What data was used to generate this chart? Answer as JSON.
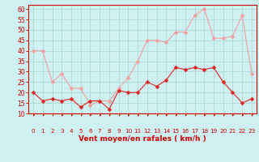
{
  "x": [
    0,
    1,
    2,
    3,
    4,
    5,
    6,
    7,
    8,
    9,
    10,
    11,
    12,
    13,
    14,
    15,
    16,
    17,
    18,
    19,
    20,
    21,
    22,
    23
  ],
  "wind_avg": [
    20,
    16,
    17,
    16,
    17,
    13,
    16,
    16,
    12,
    21,
    20,
    20,
    25,
    23,
    26,
    32,
    31,
    32,
    31,
    32,
    25,
    20,
    15,
    17
  ],
  "wind_gust": [
    40,
    40,
    25,
    29,
    22,
    22,
    14,
    16,
    16,
    22,
    27,
    35,
    45,
    45,
    44,
    49,
    49,
    57,
    60,
    46,
    46,
    47,
    57,
    29
  ],
  "xlabel": "Vent moyen/en rafales ( km/h )",
  "ylim": [
    10,
    62
  ],
  "yticks": [
    10,
    15,
    20,
    25,
    30,
    35,
    40,
    45,
    50,
    55,
    60
  ],
  "line_color_avg": "#dd2222",
  "line_color_gust": "#f0a0a0",
  "bg_color": "#cef0f0",
  "grid_color": "#aad4d4",
  "axis_color": "#cc0000",
  "xlabel_color": "#cc0000",
  "tick_label_color": "#cc0000",
  "markersize": 2.5,
  "arrow_color": "#dd2222"
}
